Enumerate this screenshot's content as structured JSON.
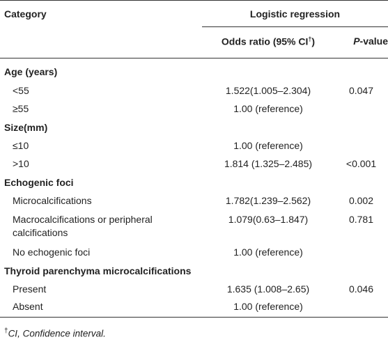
{
  "table": {
    "header": {
      "category": "Category",
      "group": "Logistic regression",
      "odds_ratio": "Odds ratio (95% CI",
      "odds_ratio_sup": "†",
      "odds_ratio_close": ")",
      "p_value_italic": "P",
      "p_value_rest": "-value"
    },
    "sections": [
      {
        "label": "Age (years)",
        "rows": [
          {
            "name": "<55",
            "or": "1.522(1.005–2.304)",
            "p": "0.047"
          },
          {
            "name": "≥55",
            "or": "1.00 (reference)",
            "p": ""
          }
        ]
      },
      {
        "label": "Size(mm)",
        "rows": [
          {
            "name": "≤10",
            "or": "1.00 (reference)",
            "p": ""
          },
          {
            "name": ">10",
            "or": "1.814 (1.325–2.485)",
            "p": "<0.001"
          }
        ]
      },
      {
        "label": "Echogenic foci",
        "rows": [
          {
            "name": "Microcalcifications",
            "or": "1.782(1.239–2.562)",
            "p": "0.002"
          },
          {
            "name": "Macrocalcifications or peripheral",
            "name2": "calcifications",
            "or": "1.079(0.63–1.847)",
            "p": "0.781"
          },
          {
            "name": "No echogenic foci",
            "or": "1.00 (reference)",
            "p": ""
          }
        ]
      },
      {
        "label": "Thyroid parenchyma microcalcifications",
        "rows": [
          {
            "name": "Present",
            "or": "1.635 (1.008–2.65)",
            "p": "0.046"
          },
          {
            "name": "Absent",
            "or": "1.00 (reference)",
            "p": ""
          }
        ]
      }
    ],
    "footnote_sup": "†",
    "footnote": "CI, Confidence interval."
  }
}
